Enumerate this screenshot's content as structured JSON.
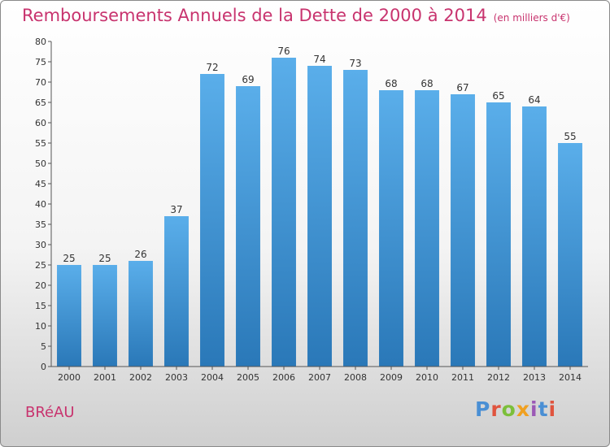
{
  "header": {
    "title": "Remboursements Annuels de la Dette de 2000 à 2014",
    "unit": "(en milliers d'€)"
  },
  "commune": "BRéAU",
  "logo": {
    "text": "Proxiti",
    "colors": [
      "#4a8fd4",
      "#e0543e",
      "#7cbf3a",
      "#f0a020",
      "#9b59b6",
      "#4a8fd4",
      "#e0543e"
    ]
  },
  "chart_data": {
    "type": "bar",
    "title": "Remboursements Annuels de la Dette de 2000 à 2014",
    "xlabel": "",
    "ylabel": "",
    "categories": [
      "2000",
      "2001",
      "2002",
      "2003",
      "2004",
      "2005",
      "2006",
      "2007",
      "2008",
      "2009",
      "2010",
      "2011",
      "2012",
      "2013",
      "2014"
    ],
    "values": [
      25,
      25,
      26,
      37,
      72,
      69,
      76,
      74,
      73,
      68,
      68,
      67,
      65,
      64,
      55
    ],
    "ylim": [
      0,
      80
    ],
    "yticks": [
      0,
      5,
      10,
      15,
      20,
      25,
      30,
      35,
      40,
      45,
      50,
      55,
      60,
      65,
      70,
      75,
      80
    ],
    "grid": false,
    "bar_color_top": "#5aaeea",
    "bar_color_bottom": "#2a78b8"
  }
}
